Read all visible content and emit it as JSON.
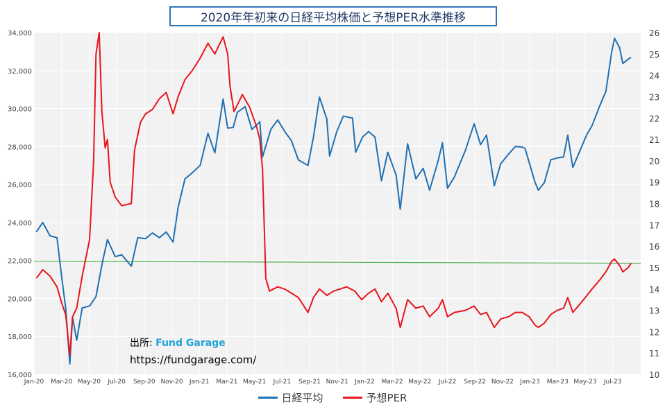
{
  "chart_data": {
    "type": "line",
    "title": "2020年年初来の日経平均株価と予想PER水準推移",
    "source_label": "出所: ",
    "source_brand": "Fund Garage",
    "source_url": "https://fundgarage.com/",
    "x_tick_labels": [
      "Jan-20",
      "Mar-20",
      "May-20",
      "Jul-20",
      "Sep-20",
      "Nov-20",
      "Jan-21",
      "Mar-21",
      "May-21",
      "Jul-21",
      "Sep-21",
      "Nov-21",
      "Jan-22",
      "Mar-22",
      "May-22",
      "Jul-22",
      "Sep-22",
      "Nov-22",
      "Jan-23",
      "Mar-23",
      "May-23",
      "Jul-23"
    ],
    "y_left": {
      "ylim": [
        16000,
        34000
      ],
      "ticks": [
        16000,
        18000,
        20000,
        22000,
        24000,
        26000,
        28000,
        30000,
        32000,
        34000
      ],
      "tick_labels": [
        "16,000",
        "18,000",
        "20,000",
        "22,000",
        "24,000",
        "26,000",
        "28,000",
        "30,000",
        "32,000",
        "34,000"
      ]
    },
    "y_right": {
      "ylim": [
        10,
        26
      ],
      "ticks": [
        10,
        11,
        12,
        13,
        14,
        15,
        16,
        17,
        18,
        19,
        20,
        21,
        22,
        23,
        24,
        25,
        26
      ],
      "tick_labels": [
        "10",
        "11",
        "12",
        "13",
        "14",
        "15",
        "16",
        "17",
        "18",
        "19",
        "20",
        "21",
        "22",
        "23",
        "24",
        "25",
        "26"
      ]
    },
    "reference_line": {
      "axis": "right",
      "start": 15.3,
      "end": 15.2,
      "color": "#4caf50"
    },
    "series": [
      {
        "name": "日経平均",
        "axis": "left",
        "color": "#1f6fb2",
        "points": [
          [
            "2020-01-06",
            23500
          ],
          [
            "2020-01-20",
            24000
          ],
          [
            "2020-02-05",
            23300
          ],
          [
            "2020-02-20",
            23200
          ],
          [
            "2020-03-02",
            21000
          ],
          [
            "2020-03-10",
            19500
          ],
          [
            "2020-03-19",
            16550
          ],
          [
            "2020-03-25",
            19000
          ],
          [
            "2020-04-03",
            17800
          ],
          [
            "2020-04-15",
            19500
          ],
          [
            "2020-05-01",
            19600
          ],
          [
            "2020-05-15",
            20100
          ],
          [
            "2020-05-29",
            21900
          ],
          [
            "2020-06-09",
            23100
          ],
          [
            "2020-06-26",
            22200
          ],
          [
            "2020-07-10",
            22300
          ],
          [
            "2020-07-31",
            21700
          ],
          [
            "2020-08-14",
            23200
          ],
          [
            "2020-08-31",
            23150
          ],
          [
            "2020-09-15",
            23450
          ],
          [
            "2020-09-30",
            23200
          ],
          [
            "2020-10-15",
            23500
          ],
          [
            "2020-10-30",
            22970
          ],
          [
            "2020-11-10",
            24800
          ],
          [
            "2020-11-25",
            26300
          ],
          [
            "2020-12-10",
            26600
          ],
          [
            "2020-12-28",
            27000
          ],
          [
            "2021-01-14",
            28700
          ],
          [
            "2021-01-29",
            27660
          ],
          [
            "2021-02-16",
            30500
          ],
          [
            "2021-02-26",
            28970
          ],
          [
            "2021-03-10",
            29000
          ],
          [
            "2021-03-19",
            29800
          ],
          [
            "2021-04-05",
            30100
          ],
          [
            "2021-04-20",
            28900
          ],
          [
            "2021-05-07",
            29300
          ],
          [
            "2021-05-13",
            27450
          ],
          [
            "2021-05-31",
            28900
          ],
          [
            "2021-06-15",
            29400
          ],
          [
            "2021-06-30",
            28800
          ],
          [
            "2021-07-15",
            28300
          ],
          [
            "2021-07-30",
            27300
          ],
          [
            "2021-08-20",
            27000
          ],
          [
            "2021-09-01",
            28500
          ],
          [
            "2021-09-14",
            30600
          ],
          [
            "2021-09-30",
            29450
          ],
          [
            "2021-10-06",
            27500
          ],
          [
            "2021-10-22",
            28800
          ],
          [
            "2021-11-05",
            29600
          ],
          [
            "2021-11-25",
            29500
          ],
          [
            "2021-12-02",
            27700
          ],
          [
            "2021-12-17",
            28500
          ],
          [
            "2021-12-30",
            28790
          ],
          [
            "2022-01-13",
            28500
          ],
          [
            "2022-01-27",
            26200
          ],
          [
            "2022-02-10",
            27700
          ],
          [
            "2022-02-28",
            26500
          ],
          [
            "2022-03-09",
            24700
          ],
          [
            "2022-03-25",
            28150
          ],
          [
            "2022-04-12",
            26300
          ],
          [
            "2022-04-28",
            26850
          ],
          [
            "2022-05-12",
            25700
          ],
          [
            "2022-05-31",
            27280
          ],
          [
            "2022-06-09",
            28200
          ],
          [
            "2022-06-20",
            25800
          ],
          [
            "2022-07-05",
            26400
          ],
          [
            "2022-07-29",
            27800
          ],
          [
            "2022-08-17",
            29200
          ],
          [
            "2022-08-31",
            28100
          ],
          [
            "2022-09-13",
            28600
          ],
          [
            "2022-09-30",
            25940
          ],
          [
            "2022-10-14",
            27100
          ],
          [
            "2022-10-31",
            27600
          ],
          [
            "2022-11-15",
            28000
          ],
          [
            "2022-11-30",
            27970
          ],
          [
            "2022-12-06",
            27900
          ],
          [
            "2022-12-28",
            26100
          ],
          [
            "2023-01-04",
            25700
          ],
          [
            "2023-01-17",
            26100
          ],
          [
            "2023-01-31",
            27300
          ],
          [
            "2023-02-14",
            27400
          ],
          [
            "2023-02-28",
            27450
          ],
          [
            "2023-03-09",
            28600
          ],
          [
            "2023-03-20",
            26900
          ],
          [
            "2023-04-05",
            27800
          ],
          [
            "2023-04-20",
            28650
          ],
          [
            "2023-05-01",
            29100
          ],
          [
            "2023-05-17",
            30100
          ],
          [
            "2023-05-31",
            30900
          ],
          [
            "2023-06-13",
            33000
          ],
          [
            "2023-06-19",
            33700
          ],
          [
            "2023-06-30",
            33200
          ],
          [
            "2023-07-07",
            32380
          ],
          [
            "2023-07-19",
            32600
          ],
          [
            "2023-07-25",
            32700
          ]
        ]
      },
      {
        "name": "予想PER",
        "axis": "right",
        "color": "#e8141c",
        "points": [
          [
            "2020-01-06",
            14.5
          ],
          [
            "2020-01-20",
            14.9
          ],
          [
            "2020-02-05",
            14.6
          ],
          [
            "2020-02-20",
            14.1
          ],
          [
            "2020-03-02",
            13.3
          ],
          [
            "2020-03-10",
            12.8
          ],
          [
            "2020-03-19",
            10.9
          ],
          [
            "2020-03-25",
            12.7
          ],
          [
            "2020-04-03",
            13.1
          ],
          [
            "2020-04-15",
            14.6
          ],
          [
            "2020-05-01",
            16.3
          ],
          [
            "2020-05-10",
            20.0
          ],
          [
            "2020-05-15",
            25.0
          ],
          [
            "2020-05-22",
            26.0
          ],
          [
            "2020-05-28",
            22.3
          ],
          [
            "2020-06-04",
            20.6
          ],
          [
            "2020-06-09",
            21.0
          ],
          [
            "2020-06-15",
            19.0
          ],
          [
            "2020-06-26",
            18.3
          ],
          [
            "2020-07-10",
            17.9
          ],
          [
            "2020-07-31",
            18.0
          ],
          [
            "2020-08-07",
            20.5
          ],
          [
            "2020-08-20",
            21.8
          ],
          [
            "2020-08-31",
            22.2
          ],
          [
            "2020-09-15",
            22.4
          ],
          [
            "2020-09-30",
            22.9
          ],
          [
            "2020-10-15",
            23.2
          ],
          [
            "2020-10-30",
            22.2
          ],
          [
            "2020-11-10",
            23.0
          ],
          [
            "2020-11-25",
            23.8
          ],
          [
            "2020-12-10",
            24.2
          ],
          [
            "2020-12-28",
            24.8
          ],
          [
            "2021-01-14",
            25.5
          ],
          [
            "2021-01-29",
            25.0
          ],
          [
            "2021-02-16",
            25.8
          ],
          [
            "2021-02-26",
            25.0
          ],
          [
            "2021-03-03",
            23.5
          ],
          [
            "2021-03-12",
            22.3
          ],
          [
            "2021-03-30",
            23.1
          ],
          [
            "2021-04-15",
            22.5
          ],
          [
            "2021-04-30",
            21.6
          ],
          [
            "2021-05-07",
            21.0
          ],
          [
            "2021-05-13",
            19.6
          ],
          [
            "2021-05-20",
            14.5
          ],
          [
            "2021-05-28",
            13.9
          ],
          [
            "2021-06-15",
            14.1
          ],
          [
            "2021-06-30",
            14.0
          ],
          [
            "2021-07-15",
            13.8
          ],
          [
            "2021-07-30",
            13.6
          ],
          [
            "2021-08-20",
            12.9
          ],
          [
            "2021-09-01",
            13.6
          ],
          [
            "2021-09-14",
            14.0
          ],
          [
            "2021-09-30",
            13.7
          ],
          [
            "2021-10-15",
            13.9
          ],
          [
            "2021-10-29",
            14.0
          ],
          [
            "2021-11-12",
            14.1
          ],
          [
            "2021-11-30",
            13.9
          ],
          [
            "2021-12-15",
            13.5
          ],
          [
            "2021-12-30",
            13.8
          ],
          [
            "2022-01-13",
            14.0
          ],
          [
            "2022-01-27",
            13.4
          ],
          [
            "2022-02-10",
            13.8
          ],
          [
            "2022-02-28",
            13.1
          ],
          [
            "2022-03-09",
            12.2
          ],
          [
            "2022-03-25",
            13.5
          ],
          [
            "2022-04-12",
            13.1
          ],
          [
            "2022-04-28",
            13.2
          ],
          [
            "2022-05-12",
            12.7
          ],
          [
            "2022-05-31",
            13.1
          ],
          [
            "2022-06-09",
            13.5
          ],
          [
            "2022-06-20",
            12.7
          ],
          [
            "2022-07-05",
            12.9
          ],
          [
            "2022-07-29",
            13.0
          ],
          [
            "2022-08-17",
            13.2
          ],
          [
            "2022-08-31",
            12.8
          ],
          [
            "2022-09-13",
            12.9
          ],
          [
            "2022-09-30",
            12.2
          ],
          [
            "2022-10-14",
            12.6
          ],
          [
            "2022-10-31",
            12.7
          ],
          [
            "2022-11-15",
            12.9
          ],
          [
            "2022-11-30",
            12.9
          ],
          [
            "2022-12-15",
            12.7
          ],
          [
            "2022-12-28",
            12.3
          ],
          [
            "2023-01-04",
            12.2
          ],
          [
            "2023-01-17",
            12.4
          ],
          [
            "2023-01-31",
            12.8
          ],
          [
            "2023-02-14",
            13.0
          ],
          [
            "2023-02-28",
            13.1
          ],
          [
            "2023-03-09",
            13.6
          ],
          [
            "2023-03-20",
            12.9
          ],
          [
            "2023-04-05",
            13.3
          ],
          [
            "2023-04-20",
            13.7
          ],
          [
            "2023-05-01",
            14.0
          ],
          [
            "2023-05-17",
            14.4
          ],
          [
            "2023-05-31",
            14.8
          ],
          [
            "2023-06-13",
            15.3
          ],
          [
            "2023-06-19",
            15.4
          ],
          [
            "2023-06-30",
            15.1
          ],
          [
            "2023-07-07",
            14.8
          ],
          [
            "2023-07-19",
            15.0
          ],
          [
            "2023-07-25",
            15.2
          ]
        ]
      }
    ],
    "legend_position": "bottom"
  }
}
